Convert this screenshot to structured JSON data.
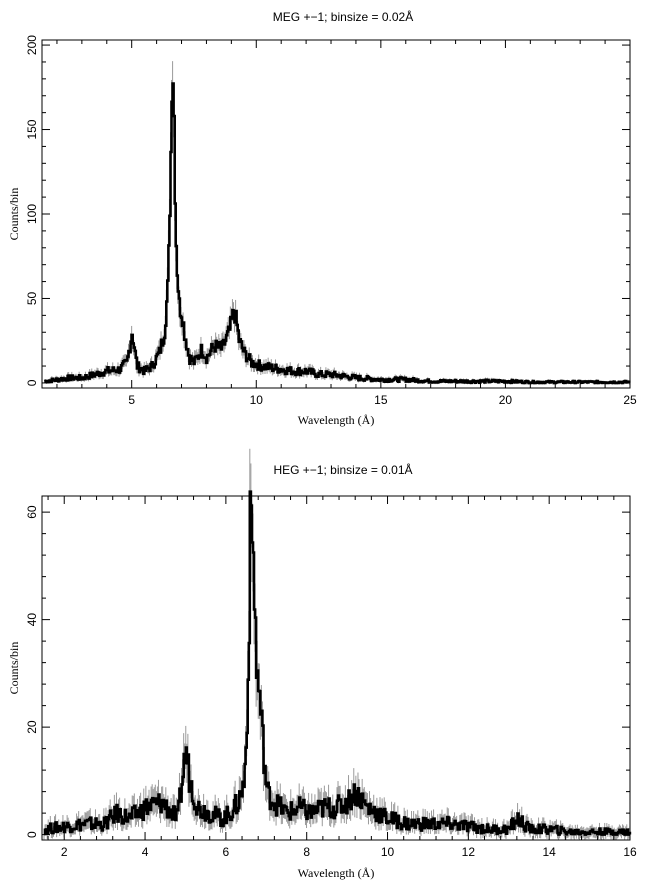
{
  "chart_data": [
    {
      "type": "line",
      "title": "MEG +−1; binsize = 0.02Å",
      "xlabel": "Wavelength (Å)",
      "ylabel": "Counts/bin",
      "xlim": [
        1.4,
        25
      ],
      "ylim": [
        -3,
        203
      ],
      "xticks": [
        5,
        10,
        15,
        20,
        25
      ],
      "yticks": [
        0,
        50,
        100,
        150,
        200
      ],
      "grid": false,
      "legend": "none",
      "series": [
        {
          "x": [
            1.5,
            2.0,
            2.5,
            3.0,
            3.5,
            4.0,
            4.5,
            4.8,
            5.0,
            5.2,
            5.5,
            5.8,
            6.1,
            6.3,
            6.45,
            6.55,
            6.62,
            6.66,
            6.7,
            6.74,
            6.8,
            6.9,
            7.0,
            7.1,
            7.3,
            7.5,
            7.8,
            8.0,
            8.3,
            8.6,
            8.9,
            9.1,
            9.2,
            9.3,
            9.5,
            9.8,
            10.2,
            10.6,
            11.0,
            11.5,
            12.0,
            12.5,
            13.0,
            13.5,
            14.0,
            15.0,
            16.0,
            17.0,
            18.0,
            19.0,
            20.0,
            21.0,
            22.0,
            23.0,
            24.0,
            25.0
          ],
          "y": [
            1,
            2,
            3,
            3,
            5,
            7,
            8,
            12,
            30,
            10,
            7,
            10,
            18,
            30,
            60,
            130,
            197,
            170,
            150,
            95,
            70,
            45,
            42,
            30,
            15,
            12,
            20,
            15,
            22,
            20,
            30,
            43,
            35,
            25,
            18,
            12,
            10,
            9,
            8,
            7,
            7,
            5,
            5,
            4,
            3,
            2,
            2,
            1,
            1,
            1,
            1,
            0.5,
            0.5,
            0.5,
            0.5,
            0.5
          ]
        }
      ]
    },
    {
      "type": "line",
      "title": "HEG +−1; binsize = 0.01Å",
      "xlabel": "Wavelength (Å)",
      "ylabel": "Counts/bin",
      "xlim": [
        1.45,
        16
      ],
      "ylim": [
        -1,
        63
      ],
      "xticks": [
        2,
        4,
        6,
        8,
        10,
        12,
        14,
        16
      ],
      "yticks": [
        0,
        20,
        40,
        60
      ],
      "grid": false,
      "legend": "none",
      "series": [
        {
          "x": [
            1.5,
            2.0,
            2.5,
            3.0,
            3.3,
            3.6,
            4.0,
            4.4,
            4.8,
            5.0,
            5.1,
            5.3,
            5.6,
            5.9,
            6.1,
            6.3,
            6.45,
            6.55,
            6.6,
            6.65,
            6.7,
            6.75,
            6.8,
            6.9,
            7.0,
            7.2,
            7.5,
            7.8,
            8.1,
            8.4,
            8.7,
            9.0,
            9.2,
            9.5,
            10.0,
            10.5,
            11.0,
            11.5,
            12.0,
            12.5,
            13.0,
            13.2,
            13.5,
            14.0,
            14.5,
            15.0,
            15.5,
            16.0
          ],
          "y": [
            1,
            1.5,
            2,
            2,
            4,
            3,
            5,
            6,
            3,
            16,
            10,
            5,
            4,
            3,
            4,
            6,
            10,
            30,
            62,
            55,
            45,
            30,
            28,
            18,
            8,
            6,
            4,
            5,
            4,
            5,
            5,
            6,
            8,
            5,
            3,
            2,
            2,
            2,
            1.5,
            1,
            1,
            3,
            1,
            1,
            0.5,
            0.5,
            0.5,
            0.5
          ]
        }
      ]
    }
  ]
}
